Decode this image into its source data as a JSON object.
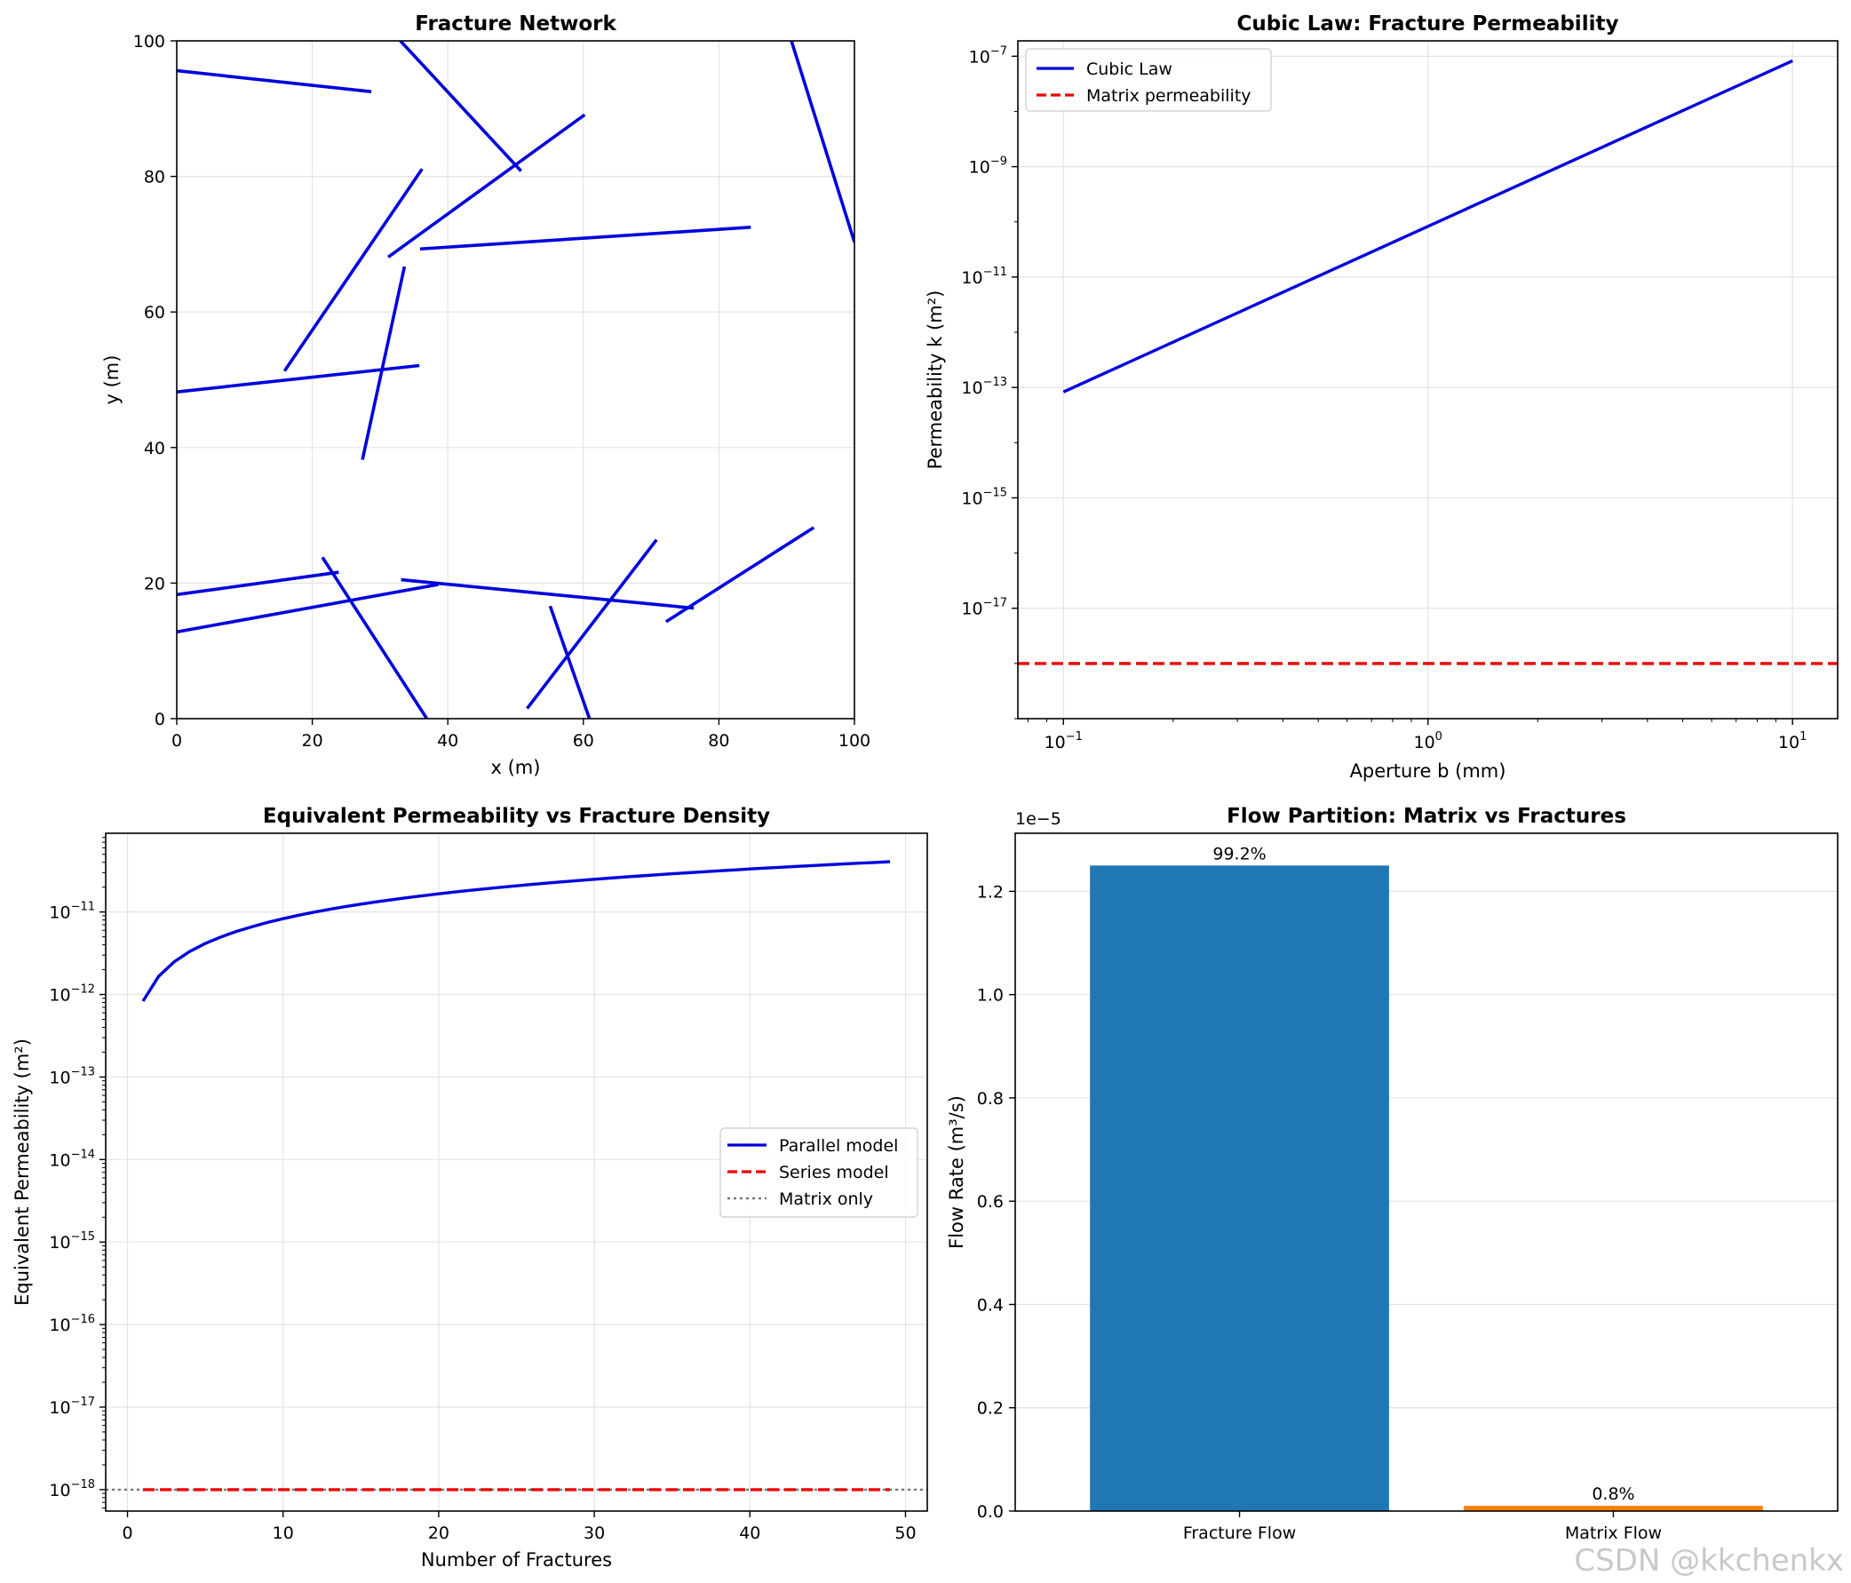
{
  "watermark": "CSDN @kkchenkx",
  "chart_data": [
    {
      "type": "line",
      "title": "Fracture Network",
      "xlabel": "x (m)",
      "ylabel": "y (m)",
      "xlim": [
        0,
        100
      ],
      "ylim": [
        0,
        100
      ],
      "xticks": [
        0,
        20,
        40,
        60,
        80,
        100
      ],
      "yticks": [
        0,
        20,
        40,
        60,
        80,
        100
      ],
      "grid": true,
      "color": "#0000dd",
      "segments": [
        [
          [
            0,
            95.6
          ],
          [
            28.7,
            92.5
          ]
        ],
        [
          [
            33,
            100
          ],
          [
            50.8,
            80.8
          ]
        ],
        [
          [
            90.7,
            100
          ],
          [
            100,
            70.3
          ]
        ],
        [
          [
            15.9,
            51.3
          ],
          [
            36.2,
            81.1
          ]
        ],
        [
          [
            31.2,
            68.1
          ],
          [
            60.2,
            89.1
          ]
        ],
        [
          [
            35.9,
            69.3
          ],
          [
            84.7,
            72.5
          ]
        ],
        [
          [
            0,
            48.2
          ],
          [
            35.8,
            52.1
          ]
        ],
        [
          [
            27.4,
            38.2
          ],
          [
            33.6,
            66.7
          ]
        ],
        [
          [
            0,
            18.3
          ],
          [
            23.9,
            21.6
          ]
        ],
        [
          [
            0,
            12.8
          ],
          [
            38.6,
            19.8
          ]
        ],
        [
          [
            21.5,
            23.8
          ],
          [
            36.9,
            0
          ]
        ],
        [
          [
            33.1,
            20.5
          ],
          [
            76.3,
            16.3
          ]
        ],
        [
          [
            72.2,
            14.3
          ],
          [
            94,
            28.2
          ]
        ],
        [
          [
            51.7,
            1.5
          ],
          [
            70.8,
            26.4
          ]
        ],
        [
          [
            55.1,
            16.6
          ],
          [
            60.9,
            0
          ]
        ]
      ]
    },
    {
      "type": "line",
      "title": "Cubic Law: Fracture Permeability",
      "xlabel": "Aperture b (mm)",
      "ylabel": "Permeability k (m²)",
      "xscale": "log",
      "yscale": "log",
      "xlim": [
        0.075,
        13.3
      ],
      "ylim": [
        1e-19,
        1.9e-07
      ],
      "xticks": [
        {
          "base": "10",
          "exp": "−1",
          "value": 0.1
        },
        {
          "base": "10",
          "exp": "0",
          "value": 1
        },
        {
          "base": "10",
          "exp": "1",
          "value": 10
        }
      ],
      "yticks": [
        {
          "base": "10",
          "exp": "−7",
          "value": 1e-07
        },
        {
          "base": "10",
          "exp": "−9",
          "value": 1e-09
        },
        {
          "base": "10",
          "exp": "−11",
          "value": 1e-11
        },
        {
          "base": "10",
          "exp": "−13",
          "value": 1e-13
        },
        {
          "base": "10",
          "exp": "−15",
          "value": 1e-15
        },
        {
          "base": "10",
          "exp": "−17",
          "value": 1e-17
        }
      ],
      "grid": true,
      "legend_position": "top-left",
      "series": [
        {
          "name": "Cubic Law",
          "color": "#0000dd",
          "style": "solid",
          "x": [
            0.1,
            10
          ],
          "y": [
            8.3e-14,
            8.3e-08
          ]
        },
        {
          "name": "Matrix permeability",
          "color": "#ee0000",
          "style": "dashed",
          "x": [
            0.075,
            13.3
          ],
          "y": [
            1e-18,
            1e-18
          ]
        }
      ]
    },
    {
      "type": "line",
      "title": "Equivalent Permeability vs Fracture Density",
      "xlabel": "Number of Fractures",
      "ylabel": "Equivalent Permeability (m²)",
      "yscale": "log",
      "xlim": [
        -1.4,
        51.4
      ],
      "ylim": [
        5.5e-19,
        9e-11
      ],
      "xticks": [
        0,
        10,
        20,
        30,
        40,
        50
      ],
      "yticks": [
        {
          "base": "10",
          "exp": "−11",
          "value": 1e-11
        },
        {
          "base": "10",
          "exp": "−12",
          "value": 1e-12
        },
        {
          "base": "10",
          "exp": "−13",
          "value": 1e-13
        },
        {
          "base": "10",
          "exp": "−14",
          "value": 1e-14
        },
        {
          "base": "10",
          "exp": "−15",
          "value": 1e-15
        },
        {
          "base": "10",
          "exp": "−16",
          "value": 1e-16
        },
        {
          "base": "10",
          "exp": "−17",
          "value": 1e-17
        },
        {
          "base": "10",
          "exp": "−18",
          "value": 1e-18
        }
      ],
      "grid": true,
      "legend_position": "center-right",
      "series": [
        {
          "name": "Parallel model",
          "color": "#0000dd",
          "style": "solid",
          "scale_per_fracture": 8.3e-13,
          "x_start": 1,
          "x_end": 49
        },
        {
          "name": "Series model",
          "color": "#ee0000",
          "style": "dashed",
          "x": [
            1,
            49
          ],
          "y": [
            1e-18,
            1e-18
          ]
        },
        {
          "name": "Matrix only",
          "color": "#777777",
          "style": "dotted",
          "x": [
            -1.4,
            51.4
          ],
          "y": [
            1e-18,
            1e-18
          ]
        }
      ]
    },
    {
      "type": "bar",
      "title": "Flow Partition: Matrix vs Fractures",
      "xlabel": "",
      "ylabel": "Flow Rate (m³/s)",
      "offset_label": "1e−5",
      "categories": [
        "Fracture Flow",
        "Matrix Flow"
      ],
      "values": [
        1.25,
        0.0101
      ],
      "value_multiplier": 1e-05,
      "colors": [
        "#1f77b4",
        "#ff7f0e"
      ],
      "data_labels": [
        "99.2%",
        "0.8%"
      ],
      "ylim": [
        0,
        1.3125
      ],
      "yticks": [
        0.0,
        0.2,
        0.4,
        0.6,
        0.8,
        1.0,
        1.2
      ],
      "ytick_labels": [
        "0.0",
        "0.2",
        "0.4",
        "0.6",
        "0.8",
        "1.0",
        "1.2"
      ],
      "grid": true
    }
  ]
}
